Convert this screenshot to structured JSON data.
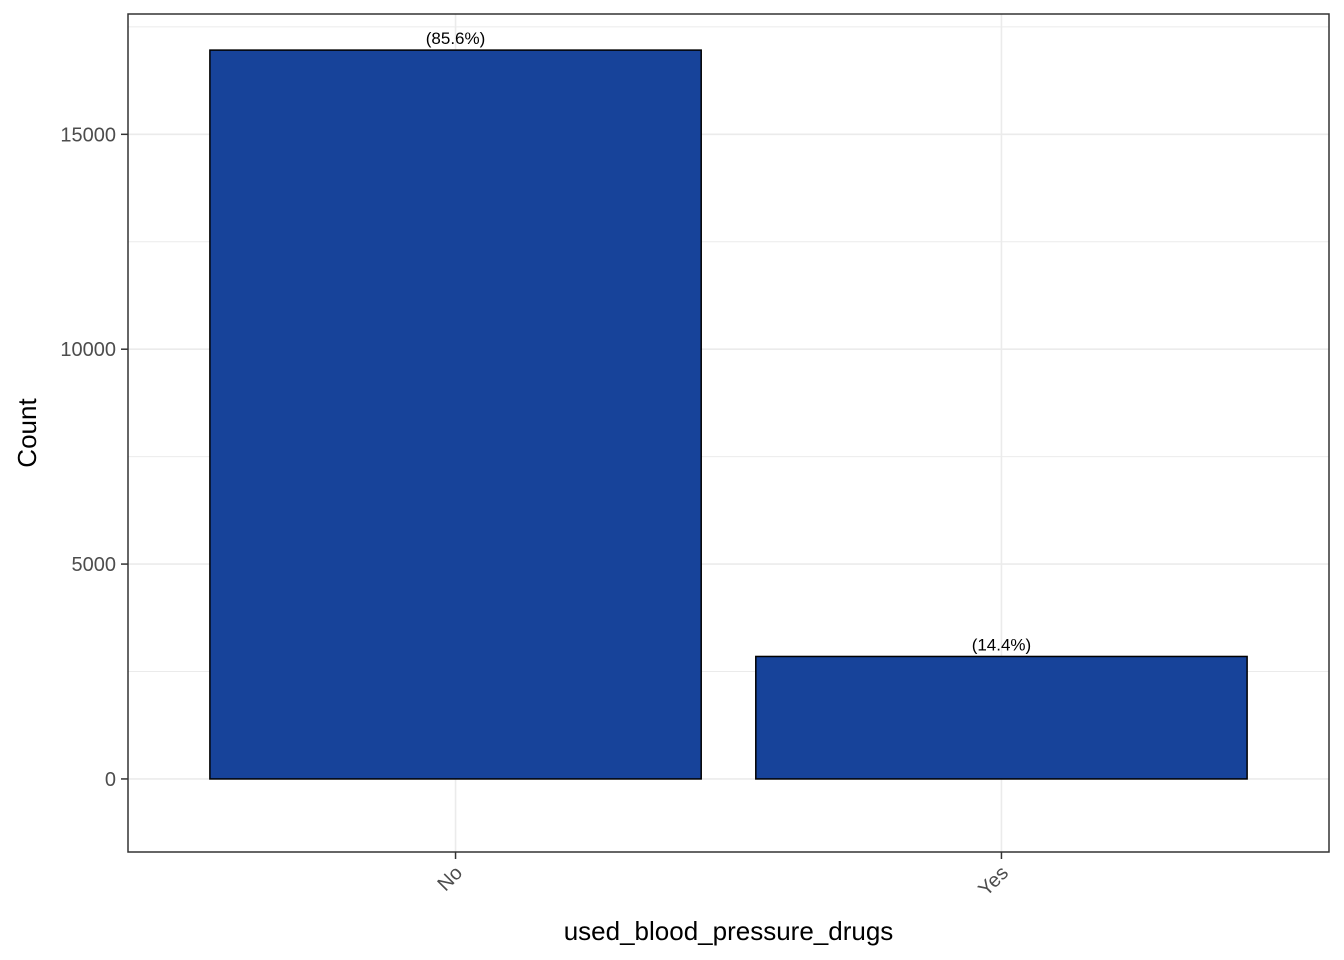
{
  "chart_data": {
    "type": "bar",
    "categories": [
      "No",
      "Yes"
    ],
    "values": [
      16960,
      2850
    ],
    "data_labels": [
      "(85.6%)",
      "(14.4%)"
    ],
    "title": "",
    "xlabel": "used_blood_pressure_drugs",
    "ylabel": "Count",
    "ylim": [
      -1700,
      17800
    ],
    "yticks": [
      0,
      5000,
      10000,
      15000
    ],
    "ytick_labels": [
      "0",
      "5000",
      "10000",
      "15000"
    ],
    "grid": true,
    "legend": "none",
    "x_tick_rotation_deg": 45,
    "colors": {
      "bar_fill": "#17439a",
      "bar_stroke": "#000000",
      "grid": "#ebebeb",
      "panel_border": "#333333"
    }
  }
}
